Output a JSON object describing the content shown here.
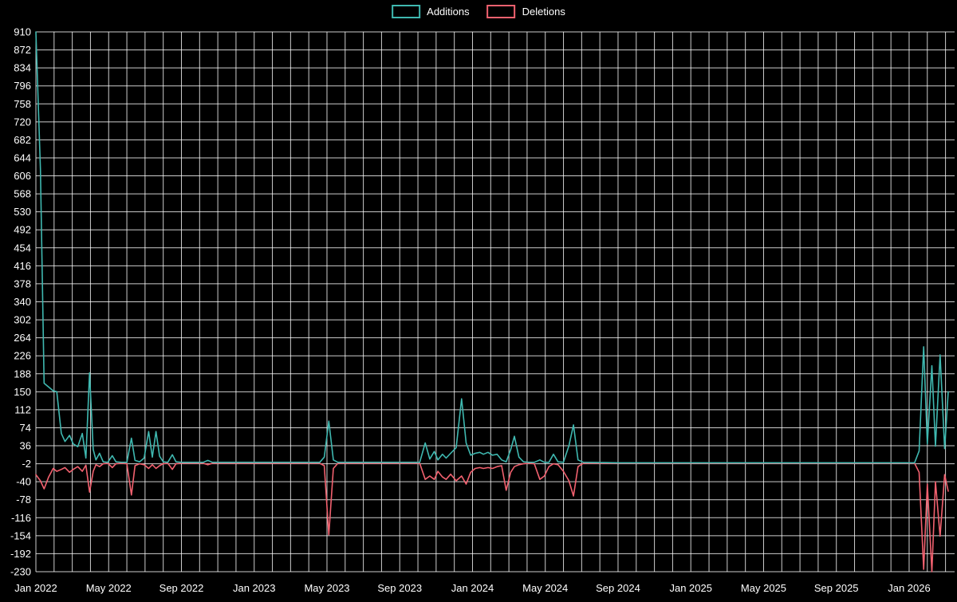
{
  "chart_data": {
    "type": "line",
    "title": "",
    "background_color": "#000000",
    "grid": {
      "show": true,
      "color": "#ffffff",
      "opacity": 0.8
    },
    "legend": [
      {
        "label": "Additions",
        "color": "#3fb8b0"
      },
      {
        "label": "Deletions",
        "color": "#f2616f"
      }
    ],
    "y_axis": {
      "min": -230,
      "max": 910,
      "step": 38,
      "tick_labels": [
        910,
        872,
        834,
        796,
        758,
        720,
        682,
        644,
        606,
        568,
        530,
        492,
        454,
        416,
        378,
        340,
        302,
        264,
        226,
        188,
        150,
        112,
        74,
        36,
        -2,
        -40,
        -78,
        -116,
        -154,
        -192,
        -230
      ]
    },
    "x_axis": {
      "unit": "months since Jan 2022",
      "months_total": 50.5,
      "minor_grid_every_month": 1,
      "labels": [
        {
          "text": "Jan 2022",
          "m": 0
        },
        {
          "text": "May 2022",
          "m": 4
        },
        {
          "text": "Sep 2022",
          "m": 8
        },
        {
          "text": "Jan 2023",
          "m": 12
        },
        {
          "text": "May 2023",
          "m": 16
        },
        {
          "text": "Sep 2023",
          "m": 20
        },
        {
          "text": "Jan 2024",
          "m": 24
        },
        {
          "text": "May 2024",
          "m": 28
        },
        {
          "text": "Sep 2024",
          "m": 32
        },
        {
          "text": "Jan 2025",
          "m": 36
        },
        {
          "text": "May 2025",
          "m": 40
        },
        {
          "text": "Sep 2025",
          "m": 44
        },
        {
          "text": "Jan 2026",
          "m": 48
        }
      ]
    },
    "series": [
      {
        "name": "Additions",
        "color": "#3fb8b0",
        "points": [
          [
            0,
            910
          ],
          [
            0.25,
            620
          ],
          [
            0.45,
            168
          ],
          [
            0.7,
            160
          ],
          [
            0.95,
            152
          ],
          [
            1.15,
            150
          ],
          [
            1.4,
            62
          ],
          [
            1.6,
            45
          ],
          [
            1.85,
            58
          ],
          [
            2.05,
            40
          ],
          [
            2.3,
            34
          ],
          [
            2.55,
            62
          ],
          [
            2.75,
            10
          ],
          [
            2.95,
            190
          ],
          [
            3.15,
            28
          ],
          [
            3.3,
            6
          ],
          [
            3.5,
            20
          ],
          [
            3.7,
            2
          ],
          [
            3.95,
            1
          ],
          [
            4.2,
            15
          ],
          [
            4.4,
            2
          ],
          [
            4.7,
            1
          ],
          [
            5.0,
            1
          ],
          [
            5.25,
            52
          ],
          [
            5.45,
            5
          ],
          [
            5.7,
            2
          ],
          [
            5.95,
            10
          ],
          [
            6.2,
            66
          ],
          [
            6.4,
            12
          ],
          [
            6.6,
            66
          ],
          [
            6.8,
            14
          ],
          [
            7.0,
            2
          ],
          [
            7.25,
            1
          ],
          [
            7.5,
            17
          ],
          [
            7.7,
            2
          ],
          [
            8.0,
            1
          ],
          [
            9.2,
            1
          ],
          [
            9.45,
            5
          ],
          [
            9.7,
            1
          ],
          [
            11,
            1
          ],
          [
            13,
            1
          ],
          [
            15.6,
            1
          ],
          [
            15.85,
            12
          ],
          [
            16.1,
            88
          ],
          [
            16.35,
            6
          ],
          [
            16.6,
            1
          ],
          [
            18,
            1
          ],
          [
            20,
            1
          ],
          [
            21.1,
            1
          ],
          [
            21.4,
            42
          ],
          [
            21.65,
            8
          ],
          [
            21.9,
            24
          ],
          [
            22.1,
            6
          ],
          [
            22.35,
            18
          ],
          [
            22.55,
            10
          ],
          [
            22.8,
            20
          ],
          [
            23.1,
            32
          ],
          [
            23.4,
            135
          ],
          [
            23.65,
            42
          ],
          [
            23.9,
            16
          ],
          [
            24.15,
            20
          ],
          [
            24.4,
            22
          ],
          [
            24.6,
            18
          ],
          [
            24.85,
            22
          ],
          [
            25.1,
            16
          ],
          [
            25.35,
            18
          ],
          [
            25.6,
            6
          ],
          [
            25.85,
            2
          ],
          [
            26.1,
            28
          ],
          [
            26.3,
            56
          ],
          [
            26.55,
            12
          ],
          [
            26.8,
            2
          ],
          [
            27.1,
            1
          ],
          [
            27.4,
            1
          ],
          [
            27.7,
            6
          ],
          [
            27.95,
            1
          ],
          [
            28.2,
            1
          ],
          [
            28.45,
            18
          ],
          [
            28.7,
            2
          ],
          [
            29.0,
            1
          ],
          [
            29.3,
            36
          ],
          [
            29.55,
            80
          ],
          [
            29.8,
            6
          ],
          [
            30.1,
            1
          ],
          [
            32,
            0
          ],
          [
            36,
            0
          ],
          [
            40,
            0
          ],
          [
            44,
            0
          ],
          [
            48.3,
            0
          ],
          [
            48.55,
            25
          ],
          [
            48.8,
            245
          ],
          [
            49.0,
            40
          ],
          [
            49.25,
            205
          ],
          [
            49.45,
            35
          ],
          [
            49.7,
            228
          ],
          [
            49.95,
            30
          ],
          [
            50.15,
            150
          ]
        ]
      },
      {
        "name": "Deletions",
        "color": "#f2616f",
        "points": [
          [
            0,
            -25
          ],
          [
            0.25,
            -38
          ],
          [
            0.45,
            -55
          ],
          [
            0.7,
            -30
          ],
          [
            0.95,
            -12
          ],
          [
            1.15,
            -18
          ],
          [
            1.4,
            -14
          ],
          [
            1.6,
            -10
          ],
          [
            1.85,
            -20
          ],
          [
            2.05,
            -14
          ],
          [
            2.3,
            -8
          ],
          [
            2.55,
            -18
          ],
          [
            2.75,
            -5
          ],
          [
            2.95,
            -62
          ],
          [
            3.15,
            -18
          ],
          [
            3.3,
            -4
          ],
          [
            3.5,
            -8
          ],
          [
            3.7,
            -2
          ],
          [
            3.95,
            -1
          ],
          [
            4.2,
            -10
          ],
          [
            4.4,
            -2
          ],
          [
            4.7,
            -1
          ],
          [
            5.0,
            -2
          ],
          [
            5.25,
            -68
          ],
          [
            5.45,
            -6
          ],
          [
            5.7,
            -2
          ],
          [
            5.95,
            -4
          ],
          [
            6.2,
            -12
          ],
          [
            6.4,
            -4
          ],
          [
            6.6,
            -12
          ],
          [
            6.8,
            -6
          ],
          [
            7.0,
            -2
          ],
          [
            7.25,
            -1
          ],
          [
            7.5,
            -14
          ],
          [
            7.7,
            -2
          ],
          [
            8.0,
            -1
          ],
          [
            9.2,
            -1
          ],
          [
            9.45,
            -4
          ],
          [
            9.7,
            -1
          ],
          [
            11,
            -1
          ],
          [
            13,
            -1
          ],
          [
            15.6,
            -1
          ],
          [
            15.85,
            -6
          ],
          [
            16.1,
            -152
          ],
          [
            16.35,
            -12
          ],
          [
            16.6,
            -1
          ],
          [
            18,
            -1
          ],
          [
            20,
            -1
          ],
          [
            21.1,
            -1
          ],
          [
            21.4,
            -35
          ],
          [
            21.65,
            -28
          ],
          [
            21.9,
            -35
          ],
          [
            22.1,
            -18
          ],
          [
            22.35,
            -30
          ],
          [
            22.55,
            -35
          ],
          [
            22.8,
            -24
          ],
          [
            23.1,
            -38
          ],
          [
            23.4,
            -28
          ],
          [
            23.65,
            -45
          ],
          [
            23.9,
            -20
          ],
          [
            24.15,
            -12
          ],
          [
            24.4,
            -10
          ],
          [
            24.6,
            -12
          ],
          [
            24.85,
            -10
          ],
          [
            25.1,
            -12
          ],
          [
            25.35,
            -8
          ],
          [
            25.6,
            -6
          ],
          [
            25.85,
            -58
          ],
          [
            26.1,
            -20
          ],
          [
            26.3,
            -8
          ],
          [
            26.55,
            -4
          ],
          [
            26.8,
            -2
          ],
          [
            27.1,
            -1
          ],
          [
            27.4,
            -2
          ],
          [
            27.7,
            -35
          ],
          [
            27.95,
            -28
          ],
          [
            28.2,
            -8
          ],
          [
            28.45,
            -2
          ],
          [
            28.7,
            -4
          ],
          [
            29.0,
            -18
          ],
          [
            29.3,
            -38
          ],
          [
            29.55,
            -70
          ],
          [
            29.8,
            -8
          ],
          [
            30.1,
            -1
          ],
          [
            32,
            -1
          ],
          [
            36,
            -1
          ],
          [
            40,
            -1
          ],
          [
            44,
            -1
          ],
          [
            48.3,
            -1
          ],
          [
            48.55,
            -20
          ],
          [
            48.8,
            -225
          ],
          [
            49.0,
            -45
          ],
          [
            49.25,
            -230
          ],
          [
            49.45,
            -40
          ],
          [
            49.7,
            -155
          ],
          [
            49.95,
            -25
          ],
          [
            50.15,
            -60
          ]
        ]
      }
    ]
  }
}
